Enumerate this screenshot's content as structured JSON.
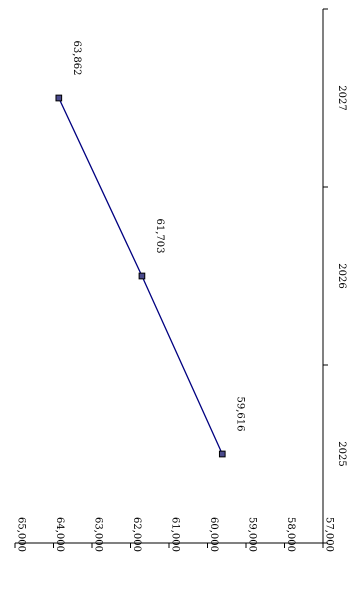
{
  "chart_data": {
    "type": "line",
    "orientation": "rotated-90-clockwise",
    "categories": [
      "2025",
      "2026",
      "2027"
    ],
    "series": [
      {
        "values": [
          59616,
          61703,
          63862
        ],
        "data_labels": [
          "59,616",
          "61,703",
          "63,862"
        ],
        "color": "#000080",
        "marker": "diamond",
        "marker_fill": "#4a4a8c"
      }
    ],
    "value_axis": {
      "range": [
        57000,
        65000
      ],
      "ticks": [
        65000,
        64000,
        63000,
        62000,
        61000,
        60000,
        59000,
        58000,
        57000
      ],
      "tick_labels": [
        "65,000",
        "64,000",
        "63,000",
        "62,000",
        "61,000",
        "60,000",
        "59,000",
        "58,000",
        "57,000"
      ],
      "reversed": true
    },
    "grid": false,
    "legend": "none",
    "title": ""
  }
}
